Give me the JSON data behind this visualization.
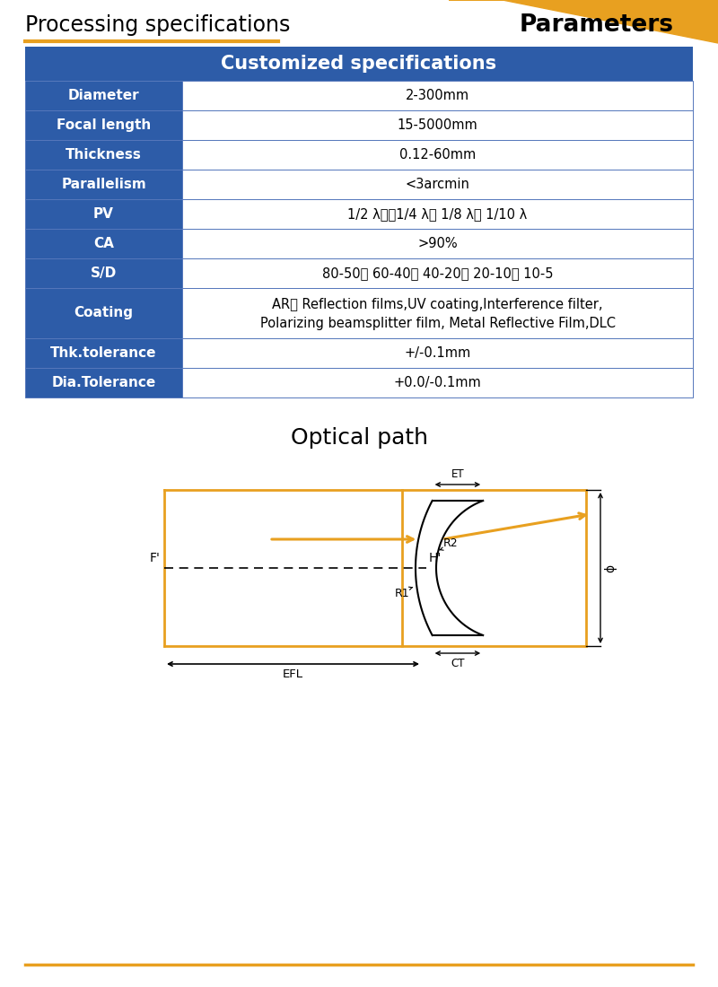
{
  "title_left": "Processing specifications",
  "title_right": "Parameters",
  "header_bg": "#2d5ca8",
  "header_text": "Customized specifications",
  "header_text_color": "#ffffff",
  "row_label_bg": "#2d5ca8",
  "row_label_color": "#ffffff",
  "row_value_bg": "#ffffff",
  "row_value_color": "#000000",
  "border_color": "#2d5ca8",
  "gold_color": "#e8a020",
  "rows": [
    [
      "Diameter",
      "2-300mm"
    ],
    [
      "Focal length",
      "15-5000mm"
    ],
    [
      "Thickness",
      "0.12-60mm"
    ],
    [
      "Parallelism",
      "<3arcmin"
    ],
    [
      "PV",
      "1/2 λ、、1/4 λ、 1/8 λ、 1/10 λ"
    ],
    [
      "CA",
      ">90%"
    ],
    [
      "S/D",
      "80-50、 60-40、 40-20、 20-10、 10-5"
    ],
    [
      "Coating",
      "AR、 Reflection films,UV coating,Interference filter,\nPolarizing beamsplitter film, Metal Reflective Film,DLC"
    ],
    [
      "Thk.tolerance",
      "+/-0.1mm"
    ],
    [
      "Dia.Tolerance",
      "+0.0/-0.1mm"
    ]
  ],
  "optical_path_title": "Optical path",
  "bottom_line_color": "#e8a020"
}
